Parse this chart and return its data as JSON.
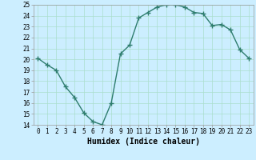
{
  "x": [
    0,
    1,
    2,
    3,
    4,
    5,
    6,
    7,
    8,
    9,
    10,
    11,
    12,
    13,
    14,
    15,
    16,
    17,
    18,
    19,
    20,
    21,
    22,
    23
  ],
  "y": [
    20.1,
    19.5,
    19.0,
    17.5,
    16.5,
    15.1,
    14.3,
    14.0,
    16.0,
    20.5,
    21.3,
    23.8,
    24.3,
    24.8,
    25.0,
    25.0,
    24.8,
    24.3,
    24.2,
    23.1,
    23.2,
    22.7,
    20.9,
    20.1
  ],
  "line_color": "#2e7d6e",
  "marker": "+",
  "marker_size": 4,
  "line_width": 1.0,
  "bg_color": "#cceeff",
  "grid_color": "#aaddcc",
  "xlabel": "Humidex (Indice chaleur)",
  "xlabel_fontsize": 7,
  "ylim": [
    14,
    25
  ],
  "xlim": [
    -0.5,
    23.5
  ],
  "yticks": [
    14,
    15,
    16,
    17,
    18,
    19,
    20,
    21,
    22,
    23,
    24,
    25
  ],
  "xticks": [
    0,
    1,
    2,
    3,
    4,
    5,
    6,
    7,
    8,
    9,
    10,
    11,
    12,
    13,
    14,
    15,
    16,
    17,
    18,
    19,
    20,
    21,
    22,
    23
  ],
  "tick_fontsize": 5.5
}
